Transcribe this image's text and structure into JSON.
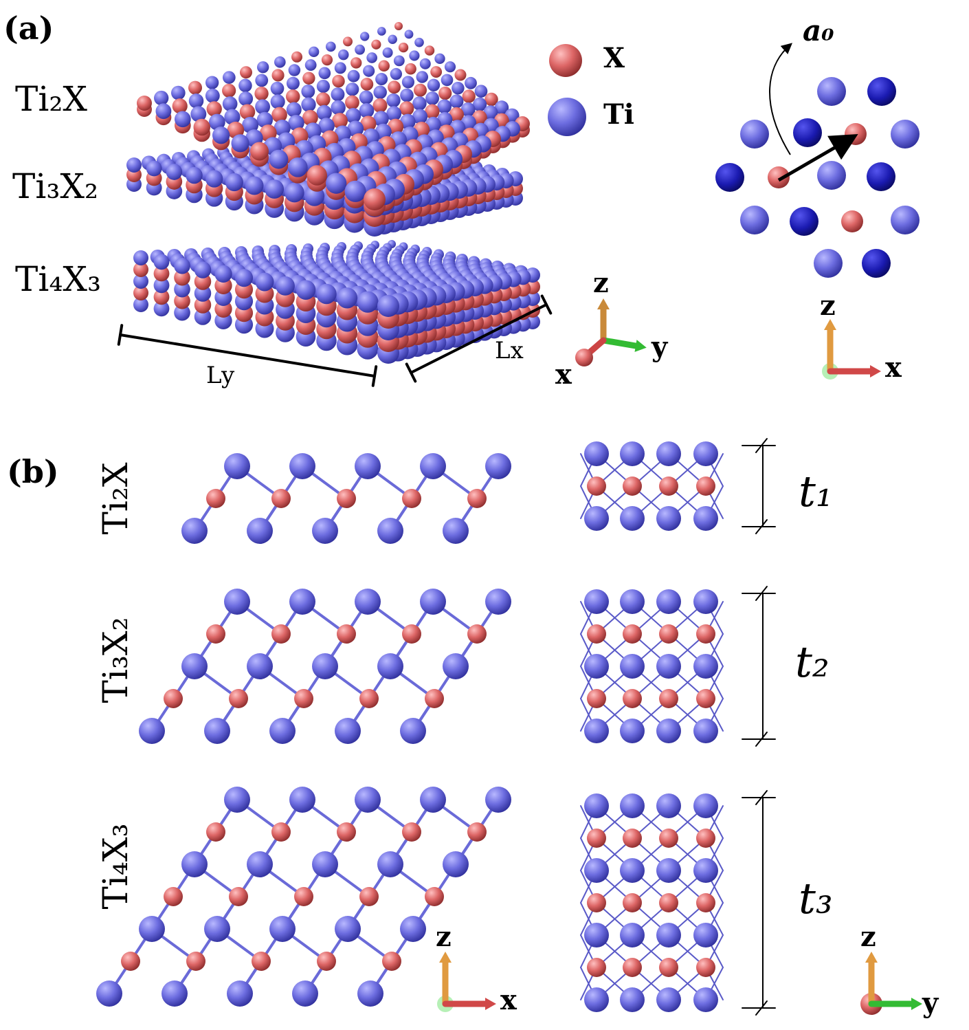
{
  "panel_a": {
    "label": "(a)",
    "layers": [
      "Ti₂X",
      "Ti₃X₂",
      "Ti₄X₃"
    ],
    "legend": [
      "X",
      "Ti"
    ],
    "dimensions": [
      "Ly",
      "Lx"
    ],
    "lattice_vector": "a₀",
    "axes_3d": [
      "z",
      "y",
      "x"
    ],
    "axes_top": [
      "z",
      "x"
    ]
  },
  "panel_b": {
    "label": "(b)",
    "structures": [
      "Ti₂X",
      "Ti₃X₂",
      "Ti₄X₃"
    ],
    "thicknesses": [
      "t₁",
      "t₂",
      "t₃"
    ],
    "axes_side": [
      "z",
      "x"
    ],
    "axes_front": [
      "z",
      "y"
    ]
  }
}
